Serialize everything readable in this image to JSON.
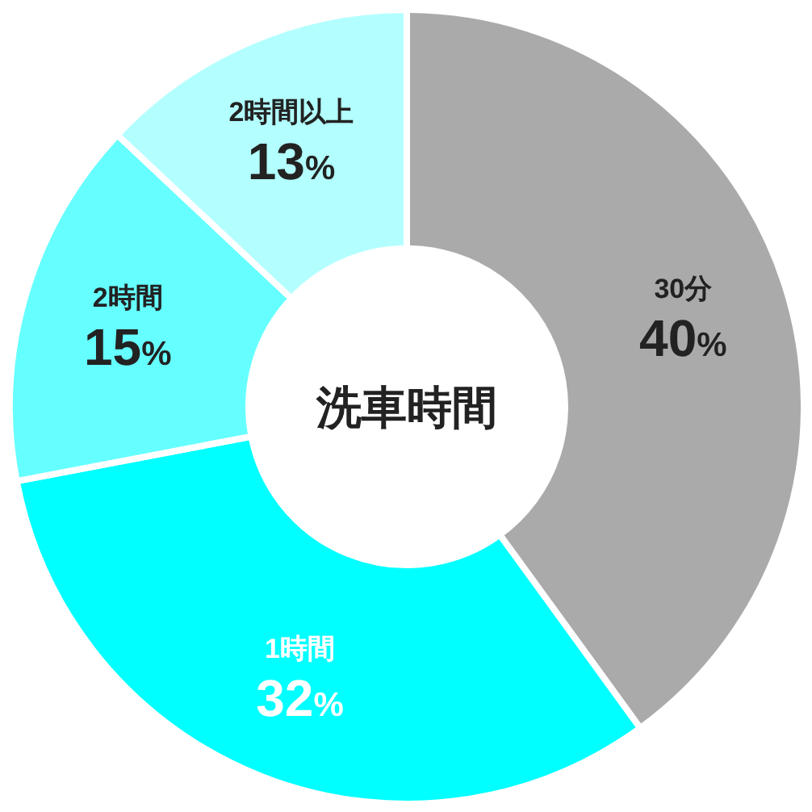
{
  "chart_data": {
    "type": "donut",
    "title": "洗車時間",
    "categories": [
      "30分",
      "1時間",
      "2時間",
      "2時間以上"
    ],
    "values": [
      40,
      32,
      15,
      13
    ],
    "value_labels": [
      "40%",
      "32%",
      "15%",
      "13%"
    ],
    "colors": [
      "#aaaaaa",
      "#00ffff",
      "#66ffff",
      "#b3ffff"
    ]
  }
}
